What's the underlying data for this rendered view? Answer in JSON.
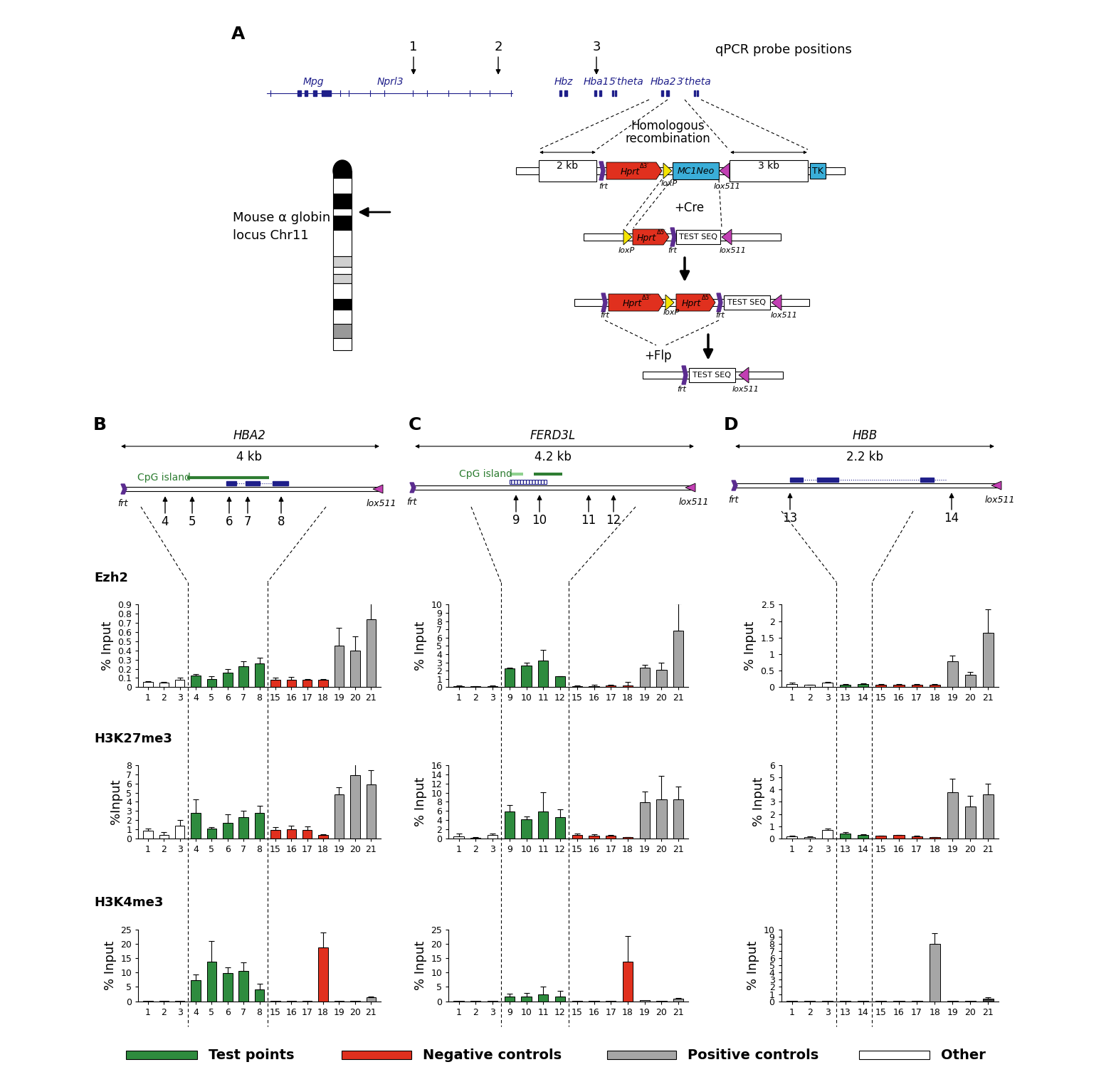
{
  "chart_data": [
    {
      "type": "bar",
      "title": "Ezh2",
      "ylabel": "% Input",
      "categories": [
        "1",
        "2",
        "3",
        "4",
        "5",
        "6",
        "7",
        "8",
        "15",
        "16",
        "17",
        "18",
        "19",
        "20",
        "21"
      ],
      "values": [
        0.06,
        0.05,
        0.08,
        0.13,
        0.09,
        0.16,
        0.23,
        0.26,
        0.08,
        0.08,
        0.08,
        0.08,
        0.45,
        0.4,
        0.74
      ],
      "errors": [
        0.005,
        0.01,
        0.02,
        0.01,
        0.03,
        0.04,
        0.05,
        0.06,
        0.02,
        0.03,
        0.01,
        0.01,
        0.2,
        0.15,
        0.27
      ],
      "colors": [
        "#ffffff",
        "#ffffff",
        "#ffffff",
        "#2e8b3e",
        "#2e8b3e",
        "#2e8b3e",
        "#2e8b3e",
        "#2e8b3e",
        "#e0301e",
        "#e0301e",
        "#e0301e",
        "#e0301e",
        "#a6a6a6",
        "#a6a6a6",
        "#a6a6a6"
      ],
      "ylim": [
        0,
        0.9
      ],
      "yticks": [
        0,
        0.1,
        0.2,
        0.3,
        0.4,
        0.5,
        0.6,
        0.7,
        0.8,
        0.9
      ]
    },
    {
      "type": "bar",
      "title": "H3K27me3",
      "ylabel": "%Input",
      "categories": [
        "1",
        "2",
        "3",
        "4",
        "5",
        "6",
        "7",
        "8",
        "15",
        "16",
        "17",
        "18",
        "19",
        "20",
        "21"
      ],
      "values": [
        0.8,
        0.4,
        1.4,
        2.8,
        1.1,
        1.7,
        2.3,
        2.8,
        0.9,
        1.0,
        0.9,
        0.4,
        4.8,
        6.9,
        5.9
      ],
      "errors": [
        0.3,
        0.3,
        0.6,
        1.5,
        0.1,
        0.9,
        0.7,
        0.8,
        0.3,
        0.4,
        0.4,
        0.05,
        0.8,
        1.6,
        1.6
      ],
      "colors": [
        "#ffffff",
        "#ffffff",
        "#ffffff",
        "#2e8b3e",
        "#2e8b3e",
        "#2e8b3e",
        "#2e8b3e",
        "#2e8b3e",
        "#e0301e",
        "#e0301e",
        "#e0301e",
        "#e0301e",
        "#a6a6a6",
        "#a6a6a6",
        "#a6a6a6"
      ],
      "ylim": [
        0,
        8
      ],
      "yticks": [
        0,
        1,
        2,
        3,
        4,
        5,
        6,
        7,
        8
      ]
    },
    {
      "type": "bar",
      "title": "H3K4me3",
      "ylabel": "% Input",
      "categories": [
        "1",
        "2",
        "3",
        "4",
        "5",
        "6",
        "7",
        "8",
        "15",
        "16",
        "17",
        "18",
        "19",
        "20",
        "21"
      ],
      "values": [
        0.1,
        0.1,
        0.1,
        7.4,
        13.9,
        9.8,
        10.5,
        4.1,
        0.1,
        0.1,
        0.1,
        18.7,
        0.1,
        0.1,
        1.4
      ],
      "errors": [
        0,
        0,
        0,
        2.0,
        7.0,
        2.0,
        3.0,
        2.0,
        0,
        0,
        0,
        5.3,
        0,
        0,
        0.3
      ],
      "colors": [
        "#ffffff",
        "#ffffff",
        "#ffffff",
        "#2e8b3e",
        "#2e8b3e",
        "#2e8b3e",
        "#2e8b3e",
        "#2e8b3e",
        "#e0301e",
        "#e0301e",
        "#e0301e",
        "#e0301e",
        "#a6a6a6",
        "#a6a6a6",
        "#a6a6a6"
      ],
      "ylim": [
        0,
        25
      ],
      "yticks": [
        0,
        5,
        10,
        15,
        20,
        25
      ]
    },
    {
      "type": "bar",
      "ylabel": "% Input",
      "categories": [
        "1",
        "2",
        "3",
        "9",
        "10",
        "11",
        "12",
        "15",
        "16",
        "17",
        "18",
        "19",
        "20",
        "21"
      ],
      "values": [
        0.15,
        0.1,
        0.15,
        2.3,
        2.6,
        3.2,
        1.3,
        0.15,
        0.15,
        0.2,
        0.2,
        2.4,
        2.1,
        6.8
      ],
      "errors": [
        0.05,
        0.05,
        0.05,
        0.1,
        0.4,
        1.3,
        0.05,
        0.05,
        0.1,
        0.1,
        0.4,
        0.3,
        0.9,
        3.3
      ],
      "colors": [
        "#ffffff",
        "#ffffff",
        "#ffffff",
        "#2e8b3e",
        "#2e8b3e",
        "#2e8b3e",
        "#2e8b3e",
        "#e0301e",
        "#e0301e",
        "#e0301e",
        "#e0301e",
        "#a6a6a6",
        "#a6a6a6",
        "#a6a6a6"
      ],
      "ylim": [
        0,
        10
      ],
      "yticks": [
        0,
        1,
        2,
        3,
        4,
        5,
        6,
        7,
        8,
        9,
        10
      ]
    },
    {
      "type": "bar",
      "ylabel": "% Input",
      "categories": [
        "1",
        "2",
        "3",
        "9",
        "10",
        "11",
        "12",
        "15",
        "16",
        "17",
        "18",
        "19",
        "20",
        "21"
      ],
      "values": [
        0.4,
        0.1,
        0.8,
        5.9,
        4.2,
        5.9,
        4.6,
        0.7,
        0.5,
        0.5,
        0.2,
        7.9,
        8.5,
        8.5
      ],
      "errors": [
        0.6,
        0.1,
        0.3,
        1.4,
        0.6,
        4.2,
        1.7,
        0.4,
        0.4,
        0.3,
        0.1,
        2.3,
        5.2,
        2.9
      ],
      "colors": [
        "#ffffff",
        "#ffffff",
        "#ffffff",
        "#2e8b3e",
        "#2e8b3e",
        "#2e8b3e",
        "#2e8b3e",
        "#e0301e",
        "#e0301e",
        "#e0301e",
        "#e0301e",
        "#a6a6a6",
        "#a6a6a6",
        "#a6a6a6"
      ],
      "ylim": [
        0,
        16
      ],
      "yticks": [
        0,
        2,
        4,
        6,
        8,
        10,
        12,
        14,
        16
      ]
    },
    {
      "type": "bar",
      "ylabel": "% Input",
      "categories": [
        "1",
        "2",
        "3",
        "9",
        "10",
        "11",
        "12",
        "15",
        "16",
        "17",
        "18",
        "19",
        "20",
        "21"
      ],
      "values": [
        0.1,
        0.1,
        0.1,
        1.7,
        1.7,
        2.4,
        1.6,
        0.2,
        0.2,
        0.1,
        13.9,
        0.3,
        0.2,
        0.9
      ],
      "errors": [
        0,
        0,
        0,
        1.0,
        1.2,
        2.6,
        2.0,
        0,
        0,
        0,
        8.8,
        0,
        0,
        0.3
      ],
      "colors": [
        "#ffffff",
        "#ffffff",
        "#ffffff",
        "#2e8b3e",
        "#2e8b3e",
        "#2e8b3e",
        "#2e8b3e",
        "#e0301e",
        "#e0301e",
        "#e0301e",
        "#e0301e",
        "#a6a6a6",
        "#a6a6a6",
        "#a6a6a6"
      ],
      "ylim": [
        0,
        25
      ],
      "yticks": [
        0,
        5,
        10,
        15,
        20,
        25
      ]
    },
    {
      "type": "bar",
      "ylabel": "% Input",
      "categories": [
        "1",
        "2",
        "3",
        "13",
        "14",
        "15",
        "16",
        "17",
        "18",
        "19",
        "20",
        "21"
      ],
      "values": [
        0.1,
        0.07,
        0.14,
        0.08,
        0.09,
        0.08,
        0.08,
        0.08,
        0.08,
        0.78,
        0.37,
        1.65
      ],
      "errors": [
        0.03,
        0.01,
        0.02,
        0.01,
        0.02,
        0.01,
        0.01,
        0.02,
        0.01,
        0.17,
        0.08,
        0.7
      ],
      "colors": [
        "#ffffff",
        "#ffffff",
        "#ffffff",
        "#2e8b3e",
        "#2e8b3e",
        "#e0301e",
        "#e0301e",
        "#e0301e",
        "#e0301e",
        "#a6a6a6",
        "#a6a6a6",
        "#a6a6a6"
      ],
      "ylim": [
        0,
        2.5
      ],
      "yticks": [
        0,
        0.5,
        1,
        1.5,
        2,
        2.5
      ]
    },
    {
      "type": "bar",
      "ylabel": "% Input",
      "categories": [
        "1",
        "2",
        "3",
        "13",
        "14",
        "15",
        "16",
        "17",
        "18",
        "19",
        "20",
        "21"
      ],
      "values": [
        0.15,
        0.1,
        0.7,
        0.4,
        0.3,
        0.2,
        0.25,
        0.15,
        0.1,
        3.8,
        2.6,
        3.6
      ],
      "errors": [
        0.05,
        0.03,
        0.1,
        0.1,
        0.05,
        0.03,
        0.03,
        0.05,
        0.02,
        1.1,
        0.9,
        0.9
      ],
      "colors": [
        "#ffffff",
        "#ffffff",
        "#ffffff",
        "#2e8b3e",
        "#2e8b3e",
        "#e0301e",
        "#e0301e",
        "#e0301e",
        "#e0301e",
        "#a6a6a6",
        "#a6a6a6",
        "#a6a6a6"
      ],
      "ylim": [
        0,
        6
      ],
      "yticks": [
        0,
        1,
        2,
        3,
        4,
        5,
        6
      ]
    },
    {
      "type": "bar",
      "ylabel": "% Input",
      "categories": [
        "1",
        "2",
        "3",
        "13",
        "14",
        "15",
        "16",
        "17",
        "18",
        "19",
        "20",
        "21"
      ],
      "values": [
        0.05,
        0.05,
        0.05,
        0.05,
        0.05,
        0.05,
        0.05,
        0.05,
        8.0,
        0.05,
        0.05,
        0.4
      ],
      "errors": [
        0,
        0,
        0,
        0,
        0,
        0,
        0,
        0,
        1.5,
        0,
        0,
        0.2
      ],
      "colors": [
        "#ffffff",
        "#ffffff",
        "#ffffff",
        "#2e8b3e",
        "#2e8b3e",
        "#e0301e",
        "#e0301e",
        "#e0301e",
        "#a6a6a6",
        "#a6a6a6",
        "#a6a6a6",
        "#404040"
      ],
      "ylim": [
        0,
        10
      ],
      "yticks": [
        0,
        1,
        2,
        3,
        4,
        5,
        6,
        7,
        8,
        9,
        10
      ]
    }
  ],
  "diagram": {
    "panel_A": {
      "letter": "A",
      "title": "qPCR probe positions",
      "probes": [
        "1",
        "2",
        "3"
      ],
      "genes": [
        "Mpg",
        "Nprl3",
        "Hbz",
        "Hba1",
        "5′theta",
        "Hba2",
        "3′theta"
      ],
      "chromosome_label": "Mouse α globin\nlocus Chr11",
      "step1": "Homologous\nrecombination",
      "arms": [
        "2 kb",
        "3 kb"
      ],
      "frt": "frt",
      "loxP": "loxP",
      "lox511": "lox511",
      "neo": "MC1Neo",
      "tk": "TK",
      "hprt": "Hprt",
      "d3": "Δ3′",
      "d5": "Δ5′",
      "test": "TEST SEQ",
      "cre": "+Cre",
      "flp": "+Flp"
    },
    "panels": [
      {
        "letter": "B",
        "gene": "HBA2",
        "length": "4 kb",
        "cpg": "CpG island",
        "probes": [
          "4",
          "5",
          "6",
          "7",
          "8"
        ]
      },
      {
        "letter": "C",
        "gene": "FERD3L",
        "length": "4.2 kb",
        "cpg": "CpG island",
        "probes": [
          "9",
          "10",
          "11",
          "12"
        ]
      },
      {
        "letter": "D",
        "gene": "HBB",
        "length": "2.2 kb",
        "probes": [
          "13",
          "14"
        ]
      }
    ],
    "key": [
      {
        "label": "Test points",
        "color": "#2e8b3e"
      },
      {
        "label": "Negative controls",
        "color": "#e0301e"
      },
      {
        "label": "Positive controls",
        "color": "#a6a6a6"
      },
      {
        "label": "Other",
        "color": "#ffffff"
      }
    ]
  }
}
